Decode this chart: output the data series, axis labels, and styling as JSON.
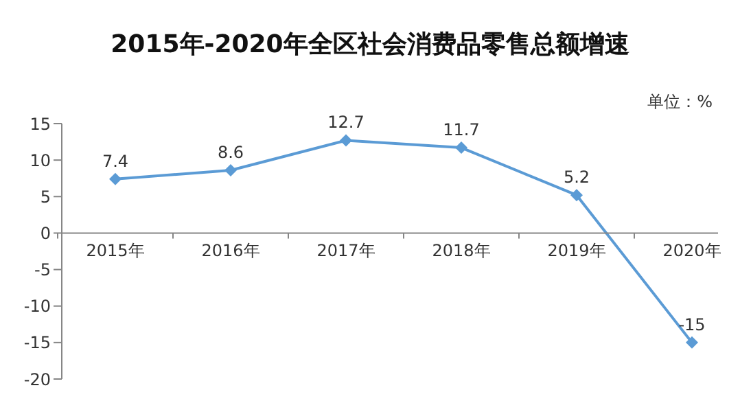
{
  "chart_data": {
    "type": "line",
    "title": "2015年-2020年全区社会消费品零售总额增速",
    "annotations": [
      "单位：%"
    ],
    "categories": [
      "2015年",
      "2016年",
      "2017年",
      "2018年",
      "2019年",
      "2020年"
    ],
    "series": [
      {
        "color": "#5b9bd5",
        "values": [
          7.4,
          8.6,
          12.7,
          11.7,
          5.2,
          -15
        ]
      }
    ],
    "ylim": [
      -20,
      15
    ],
    "yticks": [
      -20,
      -15,
      -10,
      -5,
      0,
      5,
      10,
      15
    ],
    "marker": "diamond",
    "line_style": "solid",
    "data_labels": true
  }
}
